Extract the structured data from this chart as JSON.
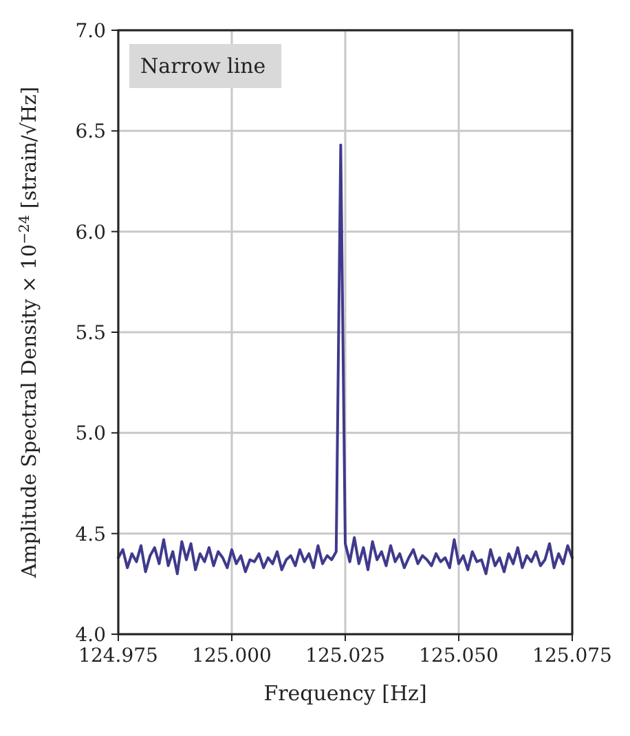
{
  "chart_data": {
    "type": "line",
    "xlabel": "Frequency [Hz]",
    "ylabel": "Amplitude Spectral Density × 10$^{−24}$ [strain/√Hz]",
    "annotations": [
      "Narrow line"
    ],
    "xlim": [
      124.975,
      125.075
    ],
    "ylim": [
      4.0,
      7.0
    ],
    "xticks": [
      {
        "value": 124.975,
        "label": "124.975"
      },
      {
        "value": 125.0,
        "label": "125.000"
      },
      {
        "value": 125.025,
        "label": "125.025"
      },
      {
        "value": 125.05,
        "label": "125.050"
      },
      {
        "value": 125.075,
        "label": "125.075"
      }
    ],
    "yticks": [
      {
        "value": 4,
        "label": "4.0"
      },
      {
        "value": 4.5,
        "label": "4.5"
      },
      {
        "value": 5,
        "label": "5.0"
      },
      {
        "value": 5.5,
        "label": "5.5"
      },
      {
        "value": 6,
        "label": "6.0"
      },
      {
        "value": 6.5,
        "label": "6.5"
      },
      {
        "value": 7,
        "label": "7.0"
      }
    ],
    "grid": true,
    "marker": "none",
    "line_style": "solid",
    "x": [
      124.975,
      124.976,
      124.977,
      124.978,
      124.979,
      124.98,
      124.981,
      124.982,
      124.983,
      124.984,
      124.985,
      124.986,
      124.987,
      124.988,
      124.989,
      124.99,
      124.991,
      124.992,
      124.993,
      124.994,
      124.995,
      124.996,
      124.997,
      124.998,
      124.999,
      125.0,
      125.001,
      125.002,
      125.003,
      125.004,
      125.005,
      125.006,
      125.007,
      125.008,
      125.009,
      125.01,
      125.011,
      125.012,
      125.013,
      125.014,
      125.015,
      125.016,
      125.017,
      125.018,
      125.019,
      125.02,
      125.021,
      125.022,
      125.023,
      125.024,
      125.025,
      125.026,
      125.027,
      125.028,
      125.029,
      125.03,
      125.031,
      125.032,
      125.033,
      125.034,
      125.035,
      125.036,
      125.037,
      125.038,
      125.039,
      125.04,
      125.041,
      125.042,
      125.043,
      125.044,
      125.045,
      125.046,
      125.047,
      125.048,
      125.049,
      125.05,
      125.051,
      125.052,
      125.053,
      125.054,
      125.055,
      125.056,
      125.057,
      125.058,
      125.059,
      125.06,
      125.061,
      125.062,
      125.063,
      125.064,
      125.065,
      125.066,
      125.067,
      125.068,
      125.069,
      125.07,
      125.071,
      125.072,
      125.073,
      125.074,
      125.075
    ],
    "series": [
      {
        "color": "#3f3a8c",
        "values": [
          4.38,
          4.42,
          4.33,
          4.4,
          4.36,
          4.44,
          4.31,
          4.39,
          4.43,
          4.35,
          4.47,
          4.34,
          4.41,
          4.3,
          4.46,
          4.37,
          4.45,
          4.32,
          4.4,
          4.36,
          4.43,
          4.34,
          4.41,
          4.38,
          4.33,
          4.42,
          4.35,
          4.39,
          4.31,
          4.37,
          4.36,
          4.4,
          4.33,
          4.38,
          4.35,
          4.41,
          4.32,
          4.37,
          4.39,
          4.34,
          4.42,
          4.36,
          4.4,
          4.33,
          4.44,
          4.35,
          4.39,
          4.37,
          4.41,
          6.43,
          4.45,
          4.36,
          4.48,
          4.35,
          4.43,
          4.32,
          4.46,
          4.37,
          4.41,
          4.34,
          4.44,
          4.36,
          4.4,
          4.33,
          4.38,
          4.42,
          4.35,
          4.39,
          4.37,
          4.34,
          4.4,
          4.36,
          4.38,
          4.33,
          4.47,
          4.35,
          4.39,
          4.32,
          4.41,
          4.36,
          4.37,
          4.3,
          4.42,
          4.34,
          4.38,
          4.31,
          4.4,
          4.35,
          4.43,
          4.33,
          4.39,
          4.36,
          4.41,
          4.34,
          4.37,
          4.45,
          4.33,
          4.4,
          4.35,
          4.44,
          4.38
        ]
      }
    ]
  }
}
